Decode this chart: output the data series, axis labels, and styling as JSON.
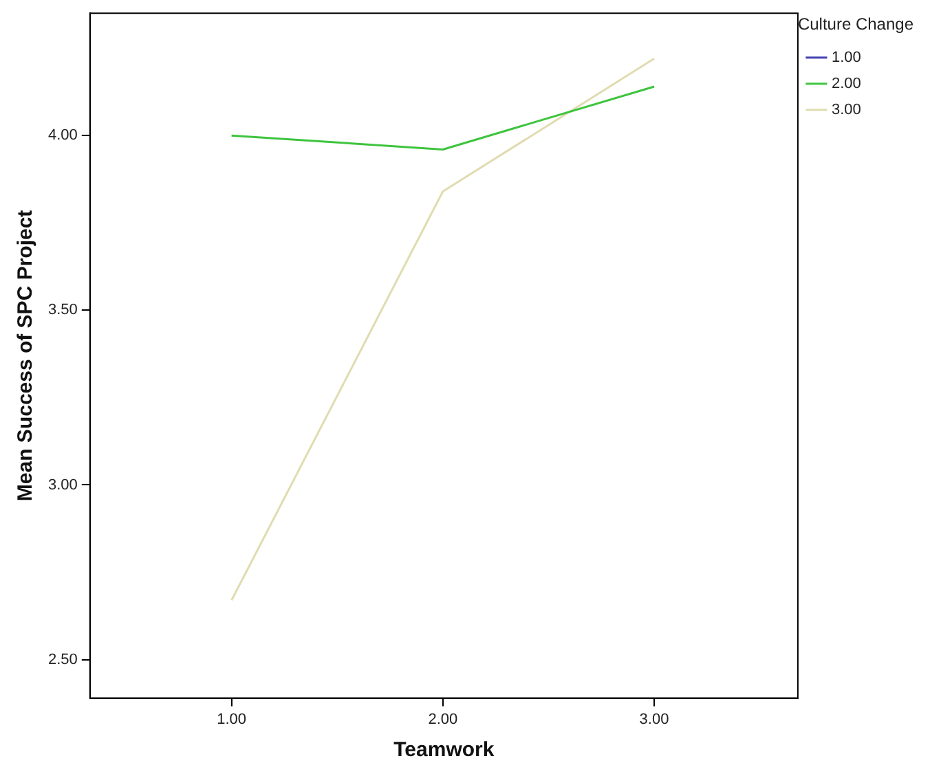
{
  "chart_data": {
    "type": "line",
    "xlabel": "Teamwork",
    "ylabel": "Mean Success of SPC Project",
    "legend_title": "Culture Change",
    "x": [
      1,
      2,
      3
    ],
    "series": [
      {
        "name": "1.00",
        "color": "#4040b0",
        "values": [
          null,
          null,
          null
        ]
      },
      {
        "name": "2.00",
        "color": "#3ec43e",
        "values": [
          4.0,
          3.96,
          4.14
        ]
      },
      {
        "name": "3.00",
        "color": "#e0dcb0",
        "values": [
          2.67,
          3.84,
          4.22
        ]
      }
    ],
    "xlim": [
      0.33,
      3.68
    ],
    "xticks": [
      {
        "value": 1,
        "label": "1.00"
      },
      {
        "value": 2,
        "label": "2.00"
      },
      {
        "value": 3,
        "label": "3.00"
      }
    ],
    "ylim": [
      2.39,
      4.35
    ],
    "yticks": [
      {
        "value": 2.5,
        "label": "2.50"
      },
      {
        "value": 3,
        "label": "3.00"
      },
      {
        "value": 3.5,
        "label": "3.50"
      },
      {
        "value": 4,
        "label": "4.00"
      }
    ],
    "grid": false,
    "legend": "top right",
    "marker": "none",
    "line_style": "solid"
  }
}
